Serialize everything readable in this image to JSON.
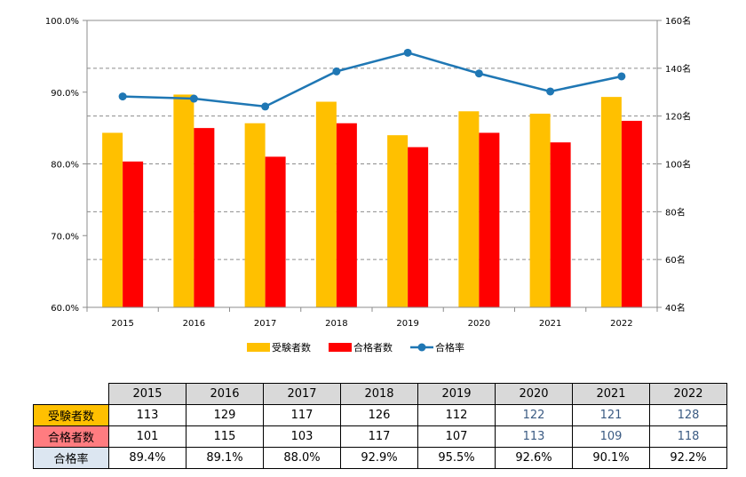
{
  "chart_data": {
    "type": "bar",
    "categories": [
      "2015",
      "2016",
      "2017",
      "2018",
      "2019",
      "2020",
      "2021",
      "2022"
    ],
    "series": [
      {
        "name": "受験者数",
        "type": "bar",
        "axis": "right",
        "color": "#ffc000",
        "values": [
          113,
          129,
          117,
          126,
          112,
          122,
          121,
          128
        ]
      },
      {
        "name": "合格者数",
        "type": "bar",
        "axis": "right",
        "color": "#ff0000",
        "values": [
          101,
          115,
          103,
          117,
          107,
          113,
          109,
          118
        ]
      },
      {
        "name": "合格率",
        "type": "line",
        "axis": "left",
        "color": "#1f77b4",
        "values": [
          89.4,
          89.1,
          88.0,
          92.9,
          95.5,
          92.6,
          90.1,
          92.2
        ]
      }
    ],
    "left_axis": {
      "ylim": [
        60,
        100
      ],
      "ticks": [
        "60.0%",
        "70.0%",
        "80.0%",
        "90.0%",
        "100.0%"
      ]
    },
    "right_axis": {
      "ylim": [
        40,
        160
      ],
      "ticks": [
        "40名",
        "60名",
        "80名",
        "100名",
        "120名",
        "140名",
        "160名"
      ]
    },
    "grid": "dashed horizontal",
    "legend": "bottom"
  },
  "table": {
    "years": [
      "2015",
      "2016",
      "2017",
      "2018",
      "2019",
      "2020",
      "2021",
      "2022"
    ],
    "rows": [
      {
        "label": "受験者数",
        "values": [
          "113",
          "129",
          "117",
          "126",
          "112",
          "122",
          "121",
          "128"
        ]
      },
      {
        "label": "合格者数",
        "values": [
          "101",
          "115",
          "103",
          "117",
          "107",
          "113",
          "109",
          "118"
        ]
      },
      {
        "label": "合格率",
        "values": [
          "89.4%",
          "89.1%",
          "88.0%",
          "92.9%",
          "95.5%",
          "92.6%",
          "90.1%",
          "92.2%"
        ]
      }
    ]
  }
}
